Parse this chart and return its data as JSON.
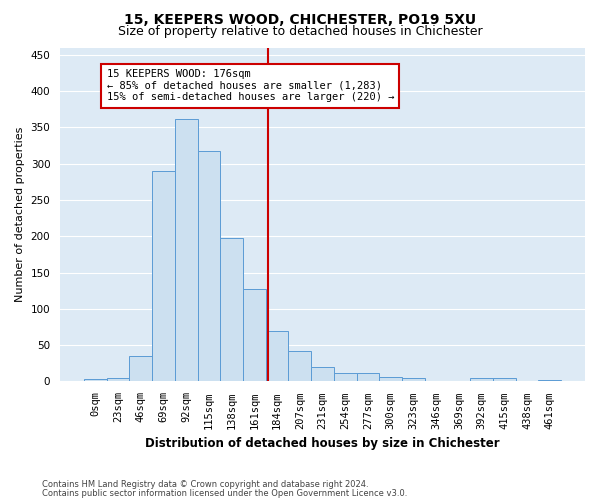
{
  "title": "15, KEEPERS WOOD, CHICHESTER, PO19 5XU",
  "subtitle": "Size of property relative to detached houses in Chichester",
  "xlabel": "Distribution of detached houses by size in Chichester",
  "ylabel": "Number of detached properties",
  "bar_labels": [
    "0sqm",
    "23sqm",
    "46sqm",
    "69sqm",
    "92sqm",
    "115sqm",
    "138sqm",
    "161sqm",
    "184sqm",
    "207sqm",
    "231sqm",
    "254sqm",
    "277sqm",
    "300sqm",
    "323sqm",
    "346sqm",
    "369sqm",
    "392sqm",
    "415sqm",
    "438sqm",
    "461sqm"
  ],
  "bar_heights": [
    3,
    5,
    35,
    290,
    362,
    317,
    197,
    128,
    70,
    42,
    20,
    11,
    11,
    6,
    5,
    1,
    1,
    5,
    5,
    1,
    2
  ],
  "bar_color": "#cce0f0",
  "bar_edge_color": "#5b9bd5",
  "vline_x": 7.6,
  "vline_color": "#cc0000",
  "annotation_text": "15 KEEPERS WOOD: 176sqm\n← 85% of detached houses are smaller (1,283)\n15% of semi-detached houses are larger (220) →",
  "annotation_box_color": "#cc0000",
  "annotation_text_color": "#000000",
  "ylim": [
    0,
    460
  ],
  "yticks": [
    0,
    50,
    100,
    150,
    200,
    250,
    300,
    350,
    400,
    450
  ],
  "plot_bg_color": "#ddeaf5",
  "fig_bg_color": "#ffffff",
  "grid_color": "#ffffff",
  "footnote1": "Contains HM Land Registry data © Crown copyright and database right 2024.",
  "footnote2": "Contains public sector information licensed under the Open Government Licence v3.0.",
  "title_fontsize": 10,
  "subtitle_fontsize": 9,
  "xlabel_fontsize": 8.5,
  "ylabel_fontsize": 8,
  "tick_fontsize": 7.5,
  "annotation_fontsize": 7.5
}
